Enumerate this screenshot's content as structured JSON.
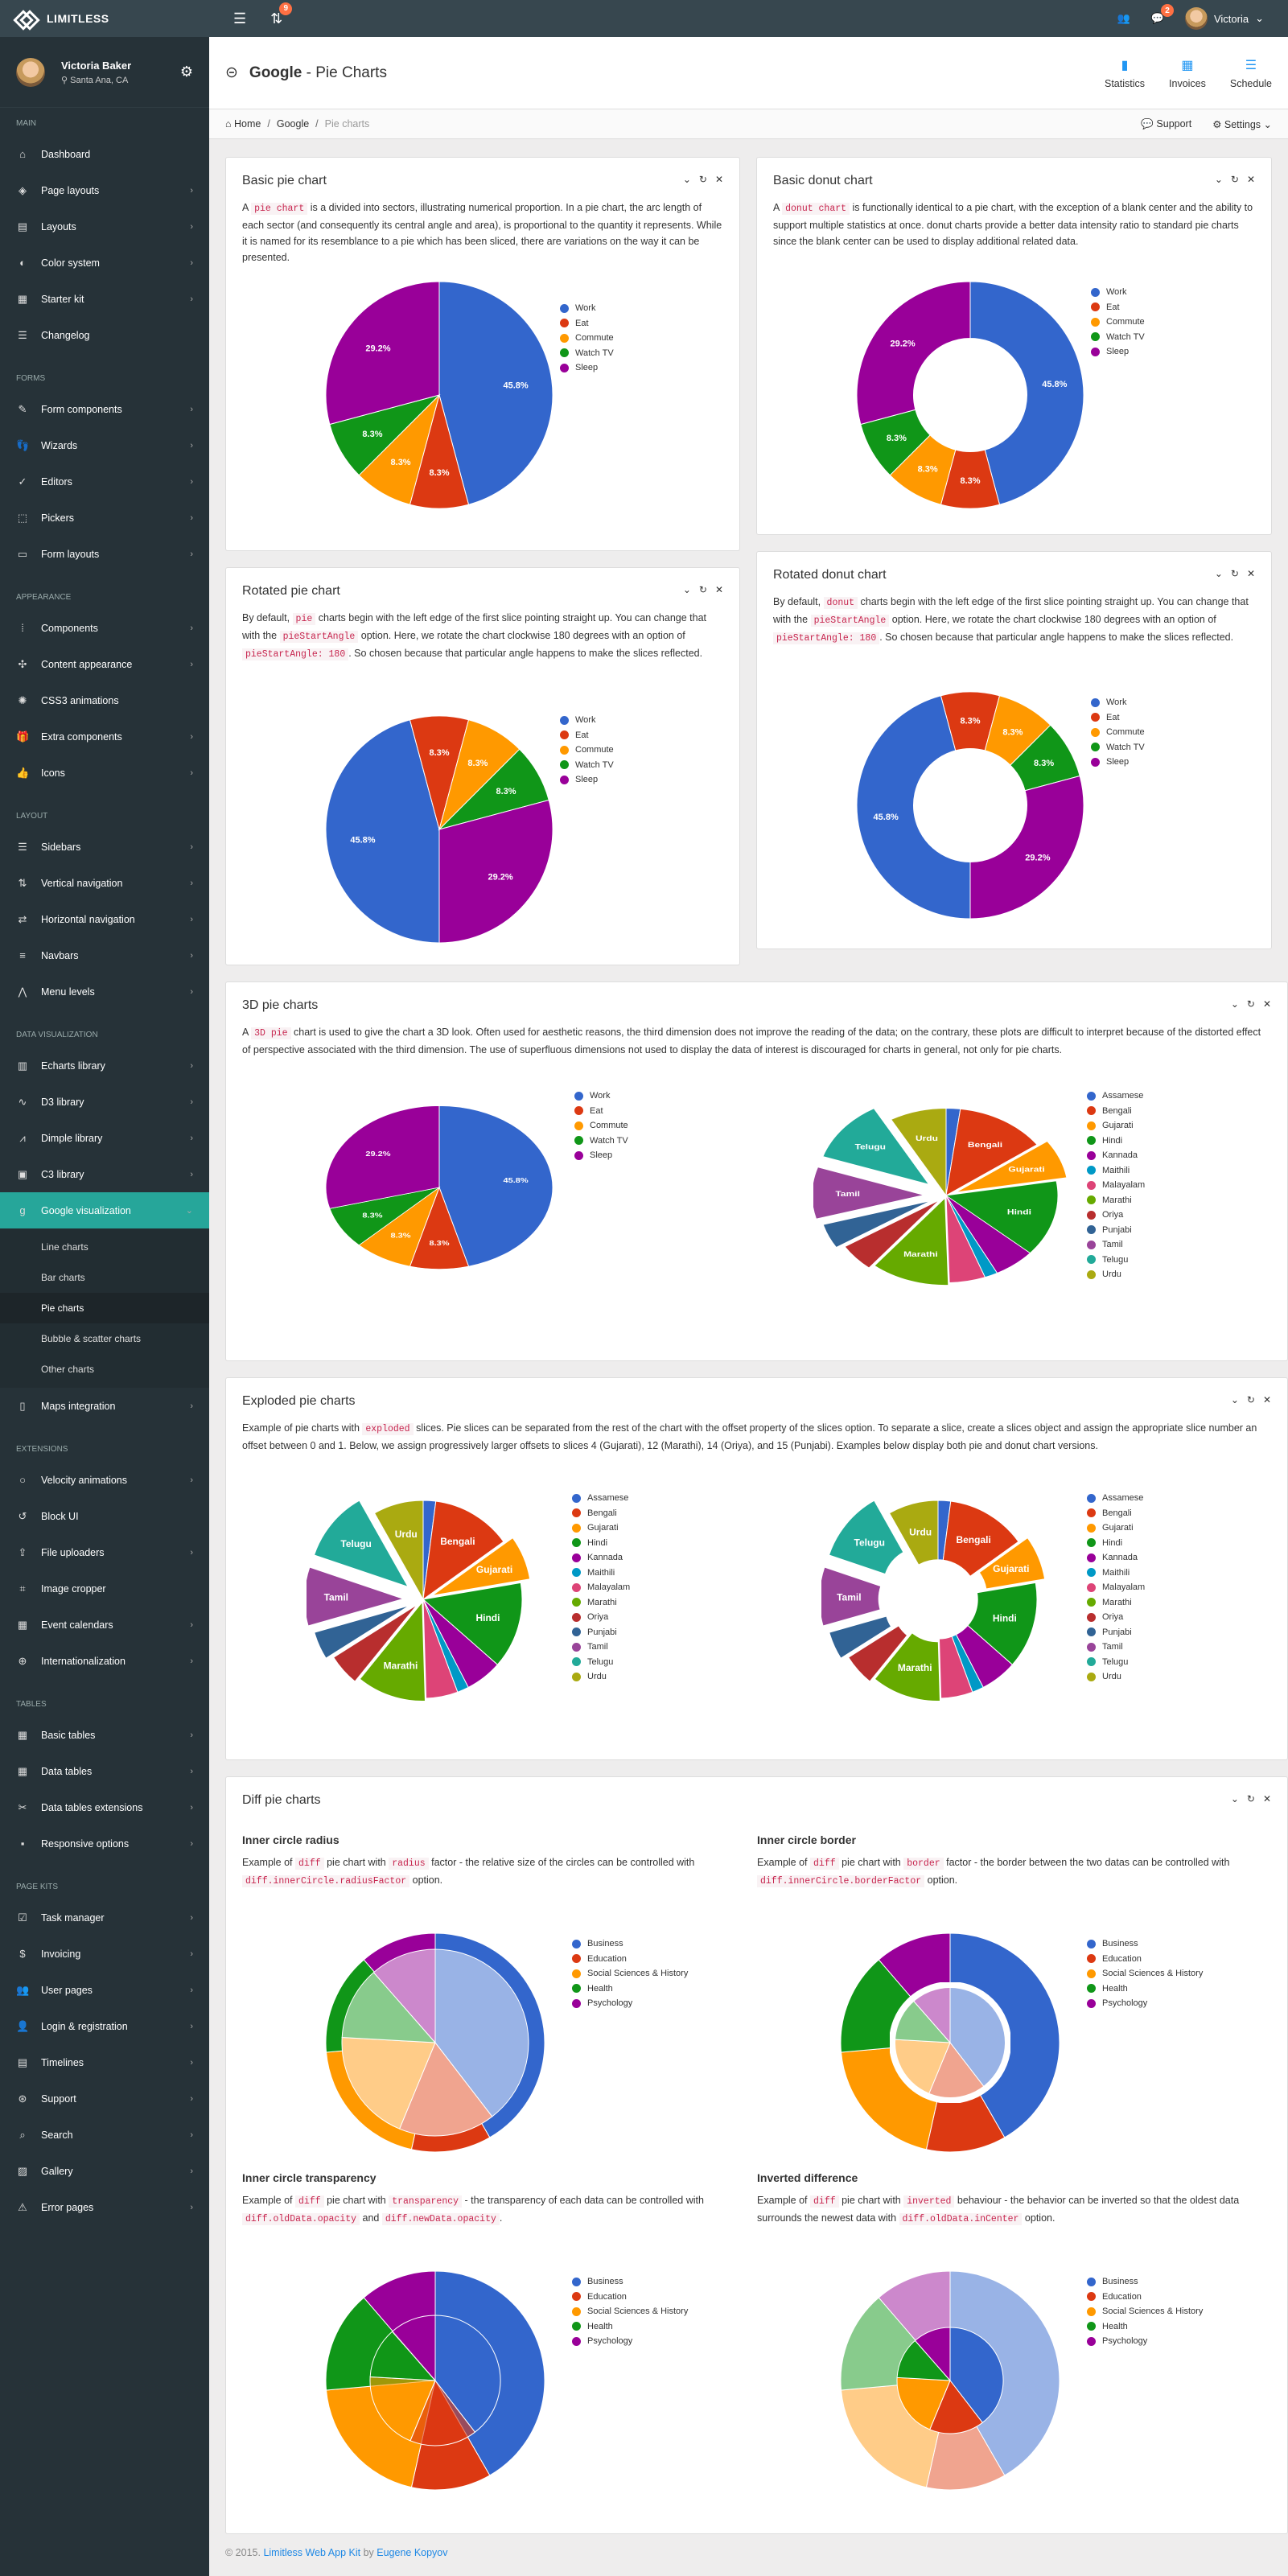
{
  "topbar": {
    "brand": "LIMITLESS",
    "updates_badge": "9",
    "messages_badge": "2",
    "user_name": "Victoria"
  },
  "sidebar": {
    "user": {
      "name": "Victoria Baker",
      "location": "Santa Ana, CA"
    },
    "sections": [
      {
        "title": "Main",
        "items": [
          {
            "label": "Dashboard",
            "icon": "⌂",
            "chev": false
          },
          {
            "label": "Page layouts",
            "icon": "◈",
            "chev": true
          },
          {
            "label": "Layouts",
            "icon": "▤",
            "chev": true
          },
          {
            "label": "Color system",
            "icon": "◐",
            "chev": true
          },
          {
            "label": "Starter kit",
            "icon": "▦",
            "chev": true
          },
          {
            "label": "Changelog",
            "icon": "☰",
            "chev": false
          }
        ]
      },
      {
        "title": "Forms",
        "items": [
          {
            "label": "Form components",
            "icon": "✎",
            "chev": true
          },
          {
            "label": "Wizards",
            "icon": "👣",
            "chev": true
          },
          {
            "label": "Editors",
            "icon": "✓",
            "chev": true
          },
          {
            "label": "Pickers",
            "icon": "⬚",
            "chev": true
          },
          {
            "label": "Form layouts",
            "icon": "▭",
            "chev": true
          }
        ]
      },
      {
        "title": "Appearance",
        "items": [
          {
            "label": "Components",
            "icon": "⁞",
            "chev": true
          },
          {
            "label": "Content appearance",
            "icon": "✣",
            "chev": true
          },
          {
            "label": "CSS3 animations",
            "icon": "✺",
            "chev": false
          },
          {
            "label": "Extra components",
            "icon": "🎁",
            "chev": true
          },
          {
            "label": "Icons",
            "icon": "👍",
            "chev": true
          }
        ]
      },
      {
        "title": "Layout",
        "items": [
          {
            "label": "Sidebars",
            "icon": "☰",
            "chev": true
          },
          {
            "label": "Vertical navigation",
            "icon": "⇅",
            "chev": true
          },
          {
            "label": "Horizontal navigation",
            "icon": "⇄",
            "chev": true
          },
          {
            "label": "Navbars",
            "icon": "≡",
            "chev": true
          },
          {
            "label": "Menu levels",
            "icon": "⋀",
            "chev": true
          }
        ]
      },
      {
        "title": "Data visualization",
        "items": [
          {
            "label": "Echarts library",
            "icon": "▥",
            "chev": true
          },
          {
            "label": "D3 library",
            "icon": "∿",
            "chev": true
          },
          {
            "label": "Dimple library",
            "icon": "⩘",
            "chev": true
          },
          {
            "label": "C3 library",
            "icon": "▣",
            "chev": true
          },
          {
            "label": "Google visualization",
            "icon": "g",
            "chev": true,
            "active": true,
            "sub": [
              "Line charts",
              "Bar charts",
              "Pie charts",
              "Bubble & scatter charts",
              "Other charts"
            ],
            "sub_active": "Pie charts"
          },
          {
            "label": "Maps integration",
            "icon": "▯",
            "chev": true
          }
        ]
      },
      {
        "title": "Extensions",
        "items": [
          {
            "label": "Velocity animations",
            "icon": "○",
            "chev": true
          },
          {
            "label": "Block UI",
            "icon": "↺",
            "chev": false
          },
          {
            "label": "File uploaders",
            "icon": "⇪",
            "chev": true
          },
          {
            "label": "Image cropper",
            "icon": "⌗",
            "chev": false
          },
          {
            "label": "Event calendars",
            "icon": "▦",
            "chev": true
          },
          {
            "label": "Internationalization",
            "icon": "⊕",
            "chev": true
          }
        ]
      },
      {
        "title": "Tables",
        "items": [
          {
            "label": "Basic tables",
            "icon": "▦",
            "chev": true
          },
          {
            "label": "Data tables",
            "icon": "▦",
            "chev": true
          },
          {
            "label": "Data tables extensions",
            "icon": "✂",
            "chev": true
          },
          {
            "label": "Responsive options",
            "icon": "▪",
            "chev": true
          }
        ]
      },
      {
        "title": "Page kits",
        "items": [
          {
            "label": "Task manager",
            "icon": "☑",
            "chev": true
          },
          {
            "label": "Invoicing",
            "icon": "$",
            "chev": true
          },
          {
            "label": "User pages",
            "icon": "👥",
            "chev": true
          },
          {
            "label": "Login & registration",
            "icon": "👤",
            "chev": true
          },
          {
            "label": "Timelines",
            "icon": "▤",
            "chev": true
          },
          {
            "label": "Support",
            "icon": "⊛",
            "chev": true
          },
          {
            "label": "Search",
            "icon": "⌕",
            "chev": true
          },
          {
            "label": "Gallery",
            "icon": "▨",
            "chev": true
          },
          {
            "label": "Error pages",
            "icon": "⚠",
            "chev": true
          }
        ]
      }
    ]
  },
  "page": {
    "title_bold": "Google",
    "title_rest": " - Pie Charts",
    "buttons": [
      "Statistics",
      "Invoices",
      "Schedule"
    ],
    "breadcrumb": [
      "Home",
      "Google",
      "Pie charts"
    ],
    "support": "Support",
    "settings": "Settings"
  },
  "cards": {
    "basic_pie": {
      "title": "Basic pie chart",
      "pre": "A ",
      "code": "pie chart",
      "post": " is a divided into sectors, illustrating numerical proportion. In a pie chart, the arc length of each sector (and consequently its central angle and area), is proportional to the quantity it represents. While it is named for its resemblance to a pie which has been sliced, there are variations on the way it can be presented."
    },
    "basic_donut": {
      "title": "Basic donut chart",
      "pre": "A ",
      "code": "donut chart",
      "post": " is functionally identical to a pie chart, with the exception of a blank center and the ability to support multiple statistics at once. donut charts provide a better data intensity ratio to standard pie charts since the blank center can be used to display additional related data."
    },
    "rotated_pie": {
      "title": "Rotated pie chart",
      "t1": "By default, ",
      "c1": "pie",
      "t2": " charts begin with the left edge of the first slice pointing straight up. You can change that with the ",
      "c2": "pieStartAngle",
      "t3": " option. Here, we rotate the chart clockwise 180 degrees with an option of ",
      "c3": "pieStartAngle: 180",
      "t4": ". So chosen because that particular angle happens to make the slices reflected."
    },
    "rotated_donut": {
      "title": "Rotated donut chart",
      "t1": "By default, ",
      "c1": "donut",
      "t2": " charts begin with the left edge of the first slice pointing straight up. You can change that with the ",
      "c2": "pieStartAngle",
      "t3": " option. Here, we rotate the chart clockwise 180 degrees with an option of ",
      "c3": "pieStartAngle: 180",
      "t4": ". So chosen because that particular angle happens to make the slices reflected."
    },
    "pie3d": {
      "title": "3D pie charts",
      "pre": "A ",
      "code": "3D pie",
      "post": " chart is used to give the chart a 3D look. Often used for aesthetic reasons, the third dimension does not improve the reading of the data; on the contrary, these plots are difficult to interpret because of the distorted effect of perspective associated with the third dimension. The use of superfluous dimensions not used to display the data of interest is discouraged for charts in general, not only for pie charts."
    },
    "exploded": {
      "title": "Exploded pie charts",
      "pre": "Example of pie charts with ",
      "code": "exploded",
      "post": " slices. Pie slices can be separated from the rest of the chart with the offset property of the slices option. To separate a slice, create a slices object and assign the appropriate slice number an offset between 0 and 1. Below, we assign progressively larger offsets to slices 4 (Gujarati), 12 (Marathi), 14 (Oriya), and 15 (Punjabi). Examples below display both pie and donut chart versions."
    },
    "diff": {
      "title": "Diff pie charts",
      "radius": {
        "title": "Inner circle radius",
        "t1": "Example of ",
        "c1": "diff",
        "t2": " pie chart with ",
        "c2": "radius",
        "t3": " factor - the relative size of the circles can be controlled with ",
        "c3": "diff.innerCircle.radiusFactor",
        "t4": " option."
      },
      "border": {
        "title": "Inner circle border",
        "t1": "Example of ",
        "c1": "diff",
        "t2": " pie chart with ",
        "c2": "border",
        "t3": " factor - the border between the two datas can be controlled with ",
        "c3": "diff.innerCircle.borderFactor",
        "t4": " option."
      },
      "transparency": {
        "title": "Inner circle transparency",
        "t1": "Example of ",
        "c1": "diff",
        "t2": " pie chart with ",
        "c2": "transparency",
        "t3": " - the transparency of each data can be controlled with ",
        "c3": "diff.oldData.opacity",
        "t4": " and ",
        "c4": "diff.newData.opacity",
        "t5": "."
      },
      "inverted": {
        "title": "Inverted difference",
        "t1": "Example of ",
        "c1": "diff",
        "t2": " pie chart with ",
        "c2": "inverted",
        "t3": " behaviour - the behavior can be inverted so that the oldest data surrounds the newest data with ",
        "c3": "diff.oldData.inCenter",
        "t4": " option."
      }
    }
  },
  "chart_data": [
    {
      "id": "daily",
      "type": "pie",
      "title": "Basic pie chart",
      "categories": [
        "Work",
        "Eat",
        "Commute",
        "Watch TV",
        "Sleep"
      ],
      "values": [
        11,
        2,
        2,
        2,
        7
      ],
      "labels": [
        "45.8%",
        "8.3%",
        "8.3%",
        "8.3%",
        "29.2%"
      ],
      "colors": [
        "#3366cc",
        "#dc3912",
        "#ff9900",
        "#109618",
        "#990099"
      ]
    },
    {
      "id": "languages",
      "type": "pie",
      "title": "Languages (3D / exploded)",
      "categories": [
        "Assamese",
        "Bengali",
        "Gujarati",
        "Hindi",
        "Kannada",
        "Maithili",
        "Malayalam",
        "Marathi",
        "Oriya",
        "Punjabi",
        "Tamil",
        "Telugu",
        "Urdu"
      ],
      "values": [
        13,
        83,
        46,
        90,
        38,
        12,
        33,
        72,
        33,
        29,
        61,
        74,
        52
      ],
      "colors": [
        "#3366cc",
        "#dc3912",
        "#ff9900",
        "#109618",
        "#990099",
        "#0099c6",
        "#dd4477",
        "#66aa00",
        "#b82e2e",
        "#316395",
        "#994499",
        "#22aa99",
        "#aaaa11"
      ],
      "exploded": {
        "Gujarati": 0.1,
        "Marathi": 0.03,
        "Oriya": 0.08,
        "Punjabi": 0.15,
        "Tamil": 0.2,
        "Telugu": 0.2
      }
    },
    {
      "id": "diff",
      "type": "pie",
      "title": "Diff pie charts",
      "categories": [
        "Business",
        "Education",
        "Social Sciences & History",
        "Health",
        "Psychology"
      ],
      "old_values": [
        256070,
        108034,
        127101,
        81863,
        74194
      ],
      "new_values": [
        358293,
        101265,
        172780,
        129634,
        97216
      ],
      "colors": [
        "#3366cc",
        "#dc3912",
        "#ff9900",
        "#109618",
        "#990099"
      ]
    }
  ],
  "footer": {
    "pre": "© 2015. ",
    "link1": "Limitless Web App Kit",
    "mid": " by ",
    "link2": "Eugene Kopyov"
  }
}
